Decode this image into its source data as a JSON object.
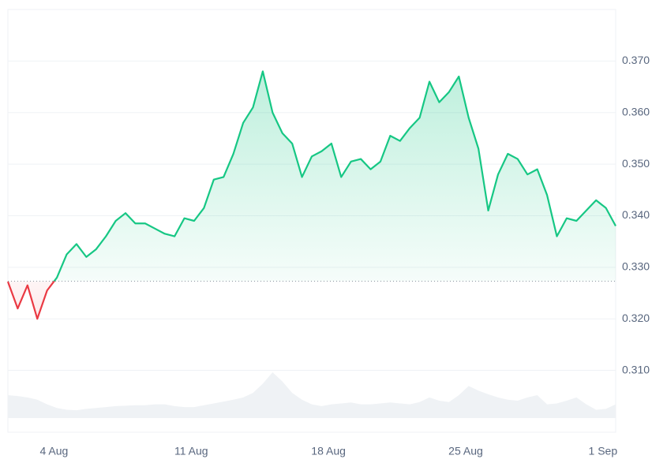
{
  "chart_data": {
    "type": "line",
    "series": [
      {
        "name": "Price",
        "color": "#16c784",
        "below_color": "#ea3943",
        "values": [
          0.3272,
          0.322,
          0.3265,
          0.32,
          0.3255,
          0.328,
          0.3325,
          0.3345,
          0.332,
          0.3335,
          0.336,
          0.339,
          0.3405,
          0.3385,
          0.3385,
          0.3375,
          0.3365,
          0.336,
          0.3395,
          0.339,
          0.3415,
          0.347,
          0.3475,
          0.352,
          0.358,
          0.361,
          0.368,
          0.36,
          0.356,
          0.354,
          0.3475,
          0.3515,
          0.3525,
          0.354,
          0.3475,
          0.3505,
          0.351,
          0.349,
          0.3505,
          0.3555,
          0.3545,
          0.357,
          0.359,
          0.366,
          0.362,
          0.364,
          0.367,
          0.359,
          0.353,
          0.341,
          0.348,
          0.352,
          0.351,
          0.348,
          0.349,
          0.344,
          0.336,
          0.3395,
          0.339,
          0.341,
          0.343,
          0.3415,
          0.338
        ]
      }
    ],
    "volume": {
      "color": "#eff2f5",
      "values": [
        50,
        48,
        45,
        40,
        30,
        22,
        18,
        17,
        20,
        22,
        24,
        26,
        27,
        28,
        28,
        30,
        30,
        26,
        24,
        24,
        28,
        32,
        36,
        40,
        45,
        55,
        75,
        100,
        80,
        55,
        40,
        30,
        26,
        30,
        32,
        34,
        30,
        30,
        32,
        34,
        32,
        30,
        35,
        45,
        38,
        35,
        50,
        70,
        60,
        52,
        45,
        40,
        38,
        45,
        50,
        30,
        32,
        38,
        45,
        30,
        18,
        20,
        30
      ]
    },
    "baseline": 0.3273,
    "xlim": [
      0,
      62
    ],
    "xticks": [
      {
        "value": 4.7,
        "label": "4 Aug"
      },
      {
        "value": 18.7,
        "label": "11 Aug"
      },
      {
        "value": 32.7,
        "label": "18 Aug"
      },
      {
        "value": 46.7,
        "label": "25 Aug"
      },
      {
        "value": 60.7,
        "label": "1 Sep"
      }
    ],
    "ylim": [
      0.298,
      0.38
    ],
    "yticks": [
      {
        "value": 0.31,
        "label": "0.310"
      },
      {
        "value": 0.32,
        "label": "0.320"
      },
      {
        "value": 0.33,
        "label": "0.330"
      },
      {
        "value": 0.34,
        "label": "0.340"
      },
      {
        "value": 0.35,
        "label": "0.350"
      },
      {
        "value": 0.36,
        "label": "0.360"
      },
      {
        "value": 0.37,
        "label": "0.370"
      }
    ],
    "grid": true
  }
}
